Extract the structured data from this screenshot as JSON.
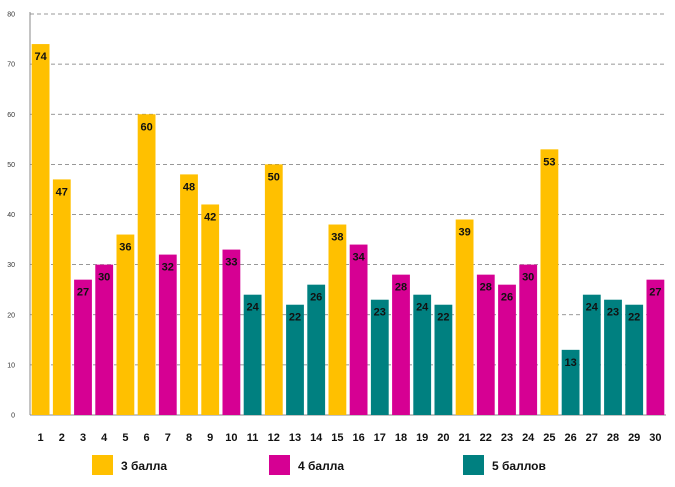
{
  "chart_data": {
    "type": "bar",
    "title": "",
    "xlabel": "",
    "ylabel": "",
    "ylim": [
      0,
      80
    ],
    "yticks": [
      0,
      10,
      20,
      30,
      40,
      50,
      60,
      70,
      80
    ],
    "grid": true,
    "legend_position": "bottom",
    "categories": [
      "1",
      "2",
      "3",
      "4",
      "5",
      "6",
      "7",
      "8",
      "9",
      "10",
      "11",
      "12",
      "13",
      "14",
      "15",
      "16",
      "17",
      "18",
      "19",
      "20",
      "21",
      "22",
      "23",
      "24",
      "25",
      "26",
      "27",
      "28",
      "29",
      "30"
    ],
    "values": [
      74,
      47,
      27,
      30,
      36,
      60,
      32,
      48,
      42,
      33,
      24,
      50,
      22,
      26,
      38,
      34,
      23,
      28,
      24,
      22,
      39,
      28,
      26,
      30,
      53,
      13,
      24,
      23,
      22,
      27
    ],
    "groups": [
      0,
      0,
      1,
      1,
      0,
      0,
      1,
      0,
      0,
      1,
      2,
      0,
      2,
      2,
      0,
      1,
      2,
      1,
      2,
      2,
      0,
      1,
      1,
      1,
      0,
      2,
      2,
      2,
      2,
      1
    ],
    "series": [
      {
        "name": "3 балла",
        "color": "#FFC000"
      },
      {
        "name": "4 балла",
        "color": "#D60093"
      },
      {
        "name": "5 баллов",
        "color": "#008080"
      }
    ]
  }
}
